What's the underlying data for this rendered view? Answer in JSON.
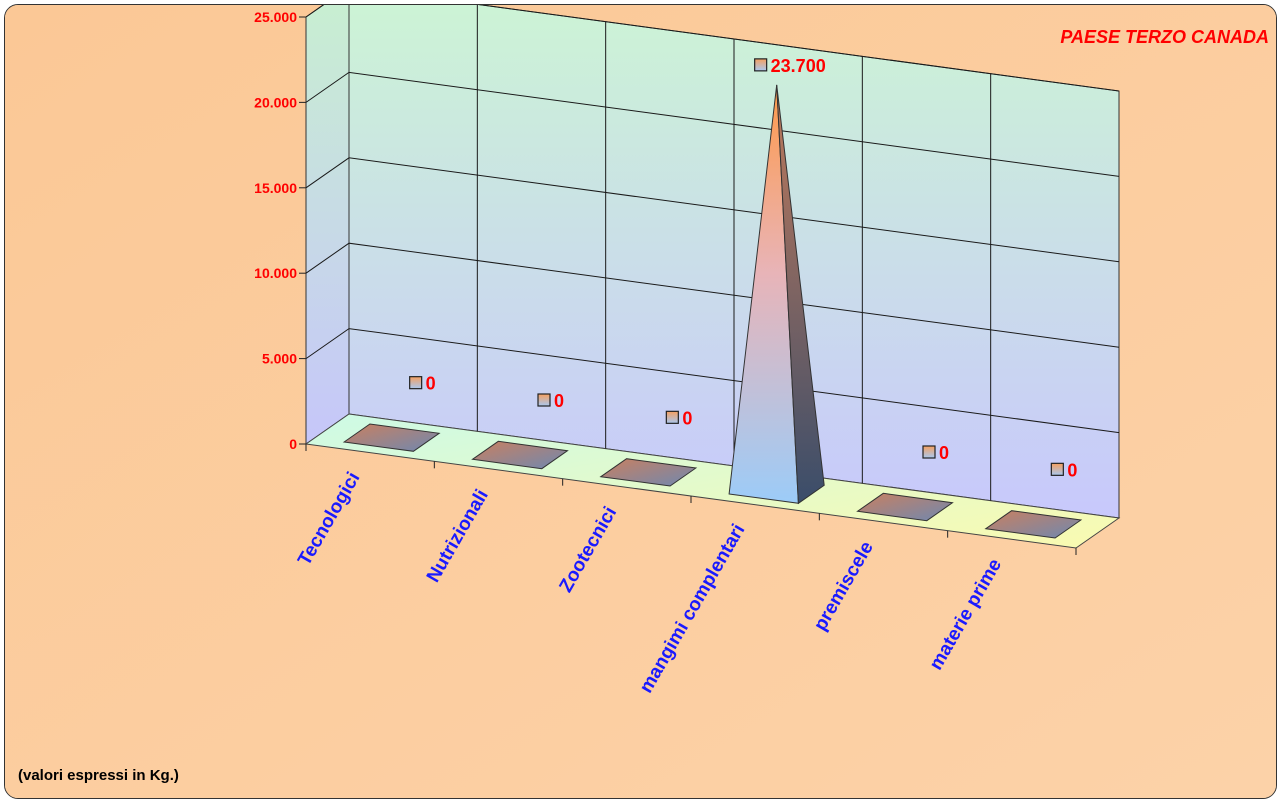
{
  "chart_data": {
    "type": "bar",
    "title": "PAESE TERZO CANADA",
    "note": "(valori espressi in Kg.)",
    "categories": [
      "Tecnologici",
      "Nutrizionali",
      "Zootecnici",
      "mangimi complentari",
      "premiscele",
      "materie prime"
    ],
    "values": [
      0,
      0,
      0,
      23700,
      0,
      0
    ],
    "data_labels": [
      "0",
      "0",
      "0",
      "23.700",
      "0",
      "0"
    ],
    "yticks": [
      0,
      5000,
      10000,
      15000,
      20000,
      25000
    ],
    "ytick_labels": [
      "0",
      "5.000",
      "10.000",
      "15.000",
      "20.000",
      "25.000"
    ],
    "ylim": [
      0,
      25000
    ],
    "grid": true,
    "legend": "none",
    "colors": {
      "background": "#fbcc98",
      "tick_labels": "#ff0000",
      "category_labels": "#1a1aff",
      "data_labels": "#ff0000",
      "title": "#ff0000"
    }
  }
}
